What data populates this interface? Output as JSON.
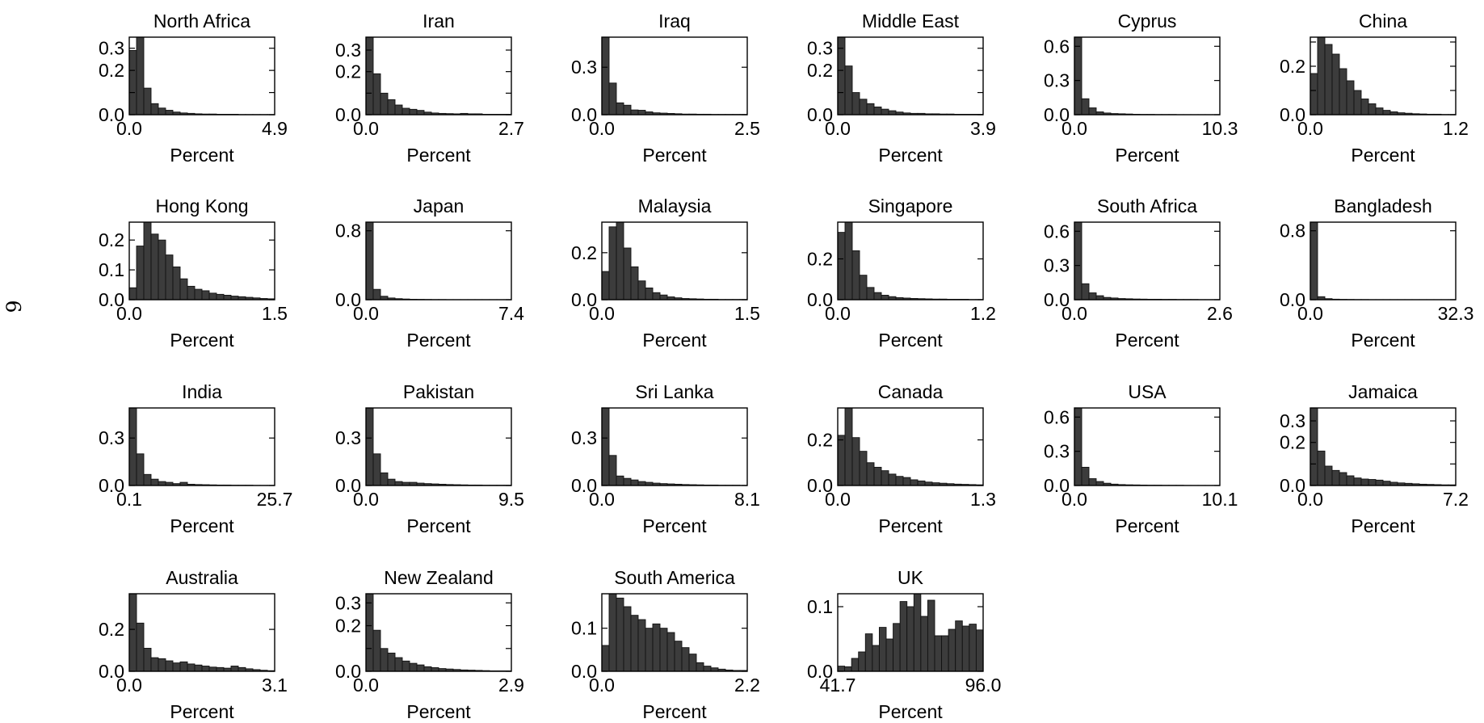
{
  "page": {
    "page_number": "6"
  },
  "chart_data": [
    {
      "type": "bar",
      "title": "North Africa",
      "xlabel": "Percent",
      "ylabel": "",
      "x_tick_labels": [
        "0.0",
        "4.9"
      ],
      "xlim": [
        0.0,
        4.9
      ],
      "y_ticks": [
        0.0,
        0.1,
        0.2,
        0.3
      ],
      "y_tick_labels": [
        "0.0",
        "0.2",
        "0.3"
      ],
      "ylim": [
        0,
        0.35
      ],
      "values": [
        0.29,
        0.35,
        0.12,
        0.05,
        0.03,
        0.02,
        0.012,
        0.008,
        0.006,
        0.004,
        0.003,
        0.003,
        0.002,
        0.002,
        0.002,
        0.001,
        0.001,
        0.001,
        0.001,
        0.001
      ]
    },
    {
      "type": "bar",
      "title": "Iran",
      "xlabel": "Percent",
      "ylabel": "",
      "x_tick_labels": [
        "0.0",
        "2.7"
      ],
      "xlim": [
        0.0,
        2.7
      ],
      "y_ticks": [
        0.0,
        0.1,
        0.2,
        0.3
      ],
      "y_tick_labels": [
        "0.0",
        "0.2",
        "0.3"
      ],
      "ylim": [
        0,
        0.36
      ],
      "values": [
        0.36,
        0.19,
        0.1,
        0.07,
        0.045,
        0.03,
        0.025,
        0.02,
        0.012,
        0.008,
        0.006,
        0.005,
        0.004,
        0.006,
        0.004,
        0.004,
        0.002,
        0.002,
        0.002,
        0.002
      ]
    },
    {
      "type": "bar",
      "title": "Iraq",
      "xlabel": "Percent",
      "ylabel": "",
      "x_tick_labels": [
        "0.0",
        "2.5"
      ],
      "xlim": [
        0.0,
        2.5
      ],
      "y_ticks": [
        0.0,
        0.3
      ],
      "y_tick_labels": [
        "0.0",
        "0.3"
      ],
      "ylim": [
        0,
        0.49
      ],
      "values": [
        0.49,
        0.2,
        0.075,
        0.06,
        0.03,
        0.028,
        0.018,
        0.012,
        0.01,
        0.008,
        0.006,
        0.004,
        0.004,
        0.003,
        0.003,
        0.002,
        0.002,
        0.002,
        0.002,
        0.002
      ]
    },
    {
      "type": "bar",
      "title": "Middle East",
      "xlabel": "Percent",
      "ylabel": "",
      "x_tick_labels": [
        "0.0",
        "3.9"
      ],
      "xlim": [
        0.0,
        3.9
      ],
      "y_ticks": [
        0.0,
        0.1,
        0.2,
        0.3
      ],
      "y_tick_labels": [
        "0.0",
        "0.2",
        "0.3"
      ],
      "ylim": [
        0,
        0.35
      ],
      "values": [
        0.35,
        0.22,
        0.1,
        0.07,
        0.05,
        0.035,
        0.025,
        0.018,
        0.012,
        0.008,
        0.006,
        0.006,
        0.004,
        0.004,
        0.003,
        0.003,
        0.002,
        0.002,
        0.002,
        0.002
      ]
    },
    {
      "type": "bar",
      "title": "Cyprus",
      "xlabel": "Percent",
      "ylabel": "",
      "x_tick_labels": [
        "0.0",
        "10.3"
      ],
      "xlim": [
        0.0,
        10.3
      ],
      "y_ticks": [
        0.0,
        0.3,
        0.6
      ],
      "y_tick_labels": [
        "0.0",
        "0.3",
        "0.6"
      ],
      "ylim": [
        0,
        0.68
      ],
      "values": [
        0.68,
        0.14,
        0.06,
        0.025,
        0.015,
        0.01,
        0.008,
        0.006,
        0.004,
        0.003,
        0.003,
        0.002,
        0.002,
        0.002,
        0.001,
        0.001,
        0.001,
        0.001,
        0.001,
        0.001
      ]
    },
    {
      "type": "bar",
      "title": "China",
      "xlabel": "Percent",
      "ylabel": "",
      "x_tick_labels": [
        "0.0",
        "1.2"
      ],
      "xlim": [
        0.0,
        1.2
      ],
      "y_ticks": [
        0.0,
        0.1,
        0.2,
        0.3
      ],
      "y_tick_labels": [
        "0.0",
        "0.2"
      ],
      "ylim": [
        0,
        0.32
      ],
      "values": [
        0.17,
        0.32,
        0.29,
        0.25,
        0.19,
        0.14,
        0.1,
        0.065,
        0.045,
        0.028,
        0.018,
        0.012,
        0.008,
        0.006,
        0.004,
        0.003,
        0.002,
        0.002,
        0.001,
        0.001
      ]
    },
    {
      "type": "bar",
      "title": "Hong Kong",
      "xlabel": "Percent",
      "ylabel": "",
      "x_tick_labels": [
        "0.0",
        "1.5"
      ],
      "xlim": [
        0.0,
        1.5
      ],
      "y_ticks": [
        0.0,
        0.1,
        0.2
      ],
      "y_tick_labels": [
        "0.0",
        "0.1",
        "0.2"
      ],
      "ylim": [
        0,
        0.26
      ],
      "values": [
        0.04,
        0.18,
        0.26,
        0.22,
        0.2,
        0.15,
        0.11,
        0.07,
        0.045,
        0.035,
        0.03,
        0.022,
        0.018,
        0.015,
        0.012,
        0.01,
        0.008,
        0.006,
        0.004,
        0.003
      ]
    },
    {
      "type": "bar",
      "title": "Japan",
      "xlabel": "Percent",
      "ylabel": "",
      "x_tick_labels": [
        "0.0",
        "7.4"
      ],
      "xlim": [
        0.0,
        7.4
      ],
      "y_ticks": [
        0.0,
        0.8
      ],
      "y_tick_labels": [
        "0.0",
        "0.8"
      ],
      "ylim": [
        0,
        0.9
      ],
      "values": [
        0.9,
        0.12,
        0.04,
        0.02,
        0.012,
        0.008,
        0.005,
        0.004,
        0.003,
        0.002,
        0.002,
        0.001,
        0.001,
        0.001,
        0.001,
        0.001,
        0.001,
        0.001,
        0.001,
        0.001
      ]
    },
    {
      "type": "bar",
      "title": "Malaysia",
      "xlabel": "Percent",
      "ylabel": "",
      "x_tick_labels": [
        "0.0",
        "1.5"
      ],
      "xlim": [
        0.0,
        1.5
      ],
      "y_ticks": [
        0.0,
        0.2
      ],
      "y_tick_labels": [
        "0.0",
        "0.2"
      ],
      "ylim": [
        0,
        0.33
      ],
      "values": [
        0.12,
        0.31,
        0.33,
        0.22,
        0.14,
        0.08,
        0.05,
        0.03,
        0.02,
        0.012,
        0.008,
        0.005,
        0.004,
        0.003,
        0.002,
        0.002,
        0.001,
        0.001,
        0.001,
        0.001
      ]
    },
    {
      "type": "bar",
      "title": "Singapore",
      "xlabel": "Percent",
      "ylabel": "",
      "x_tick_labels": [
        "0.0",
        "1.2"
      ],
      "xlim": [
        0.0,
        1.2
      ],
      "y_ticks": [
        0.0,
        0.2
      ],
      "y_tick_labels": [
        "0.0",
        "0.2"
      ],
      "ylim": [
        0,
        0.38
      ],
      "values": [
        0.33,
        0.38,
        0.24,
        0.12,
        0.06,
        0.035,
        0.022,
        0.015,
        0.01,
        0.008,
        0.006,
        0.005,
        0.004,
        0.003,
        0.003,
        0.002,
        0.002,
        0.002,
        0.001,
        0.001
      ]
    },
    {
      "type": "bar",
      "title": "South Africa",
      "xlabel": "Percent",
      "ylabel": "",
      "x_tick_labels": [
        "0.0",
        "2.6"
      ],
      "xlim": [
        0.0,
        2.6
      ],
      "y_ticks": [
        0.0,
        0.3,
        0.6
      ],
      "y_tick_labels": [
        "0.0",
        "0.3",
        "0.6"
      ],
      "ylim": [
        0,
        0.68
      ],
      "values": [
        0.68,
        0.14,
        0.06,
        0.035,
        0.02,
        0.015,
        0.01,
        0.008,
        0.006,
        0.005,
        0.004,
        0.004,
        0.003,
        0.003,
        0.002,
        0.002,
        0.002,
        0.001,
        0.001,
        0.001
      ]
    },
    {
      "type": "bar",
      "title": "Bangladesh",
      "xlabel": "Percent",
      "ylabel": "",
      "x_tick_labels": [
        "0.0",
        "32.3"
      ],
      "xlim": [
        0.0,
        32.3
      ],
      "y_ticks": [
        0.0,
        0.8
      ],
      "y_tick_labels": [
        "0.0",
        "0.8"
      ],
      "ylim": [
        0,
        0.9
      ],
      "values": [
        0.9,
        0.035,
        0.012,
        0.006,
        0.004,
        0.003,
        0.002,
        0.002,
        0.001,
        0.001,
        0.001,
        0.001,
        0.001,
        0.001,
        0.001,
        0.001,
        0.001,
        0.001,
        0.001,
        0.001
      ]
    },
    {
      "type": "bar",
      "title": "India",
      "xlabel": "Percent",
      "ylabel": "",
      "x_tick_labels": [
        "0.1",
        "25.7"
      ],
      "xlim": [
        0.1,
        25.7
      ],
      "y_ticks": [
        0.0,
        0.3
      ],
      "y_tick_labels": [
        "0.0",
        "0.3"
      ],
      "ylim": [
        0,
        0.49
      ],
      "values": [
        0.49,
        0.2,
        0.07,
        0.04,
        0.025,
        0.02,
        0.012,
        0.02,
        0.008,
        0.006,
        0.005,
        0.004,
        0.003,
        0.003,
        0.002,
        0.002,
        0.002,
        0.001,
        0.001,
        0.001
      ]
    },
    {
      "type": "bar",
      "title": "Pakistan",
      "xlabel": "Percent",
      "ylabel": "",
      "x_tick_labels": [
        "0.0",
        "9.5"
      ],
      "xlim": [
        0.0,
        9.5
      ],
      "y_ticks": [
        0.0,
        0.3
      ],
      "y_tick_labels": [
        "0.0",
        "0.3"
      ],
      "ylim": [
        0,
        0.49
      ],
      "values": [
        0.49,
        0.2,
        0.08,
        0.04,
        0.025,
        0.02,
        0.02,
        0.015,
        0.012,
        0.01,
        0.008,
        0.006,
        0.005,
        0.004,
        0.003,
        0.003,
        0.002,
        0.002,
        0.002,
        0.002
      ]
    },
    {
      "type": "bar",
      "title": "Sri Lanka",
      "xlabel": "Percent",
      "ylabel": "",
      "x_tick_labels": [
        "0.0",
        "8.1"
      ],
      "xlim": [
        0.0,
        8.1
      ],
      "y_ticks": [
        0.0,
        0.3
      ],
      "y_tick_labels": [
        "0.0",
        "0.3"
      ],
      "ylim": [
        0,
        0.49
      ],
      "values": [
        0.49,
        0.19,
        0.06,
        0.045,
        0.035,
        0.025,
        0.02,
        0.015,
        0.012,
        0.01,
        0.008,
        0.006,
        0.005,
        0.004,
        0.003,
        0.003,
        0.002,
        0.002,
        0.002,
        0.001
      ]
    },
    {
      "type": "bar",
      "title": "Canada",
      "xlabel": "Percent",
      "ylabel": "",
      "x_tick_labels": [
        "0.0",
        "1.3"
      ],
      "xlim": [
        0.0,
        1.3
      ],
      "y_ticks": [
        0.0,
        0.2
      ],
      "y_tick_labels": [
        "0.0",
        "0.2"
      ],
      "ylim": [
        0,
        0.34
      ],
      "values": [
        0.22,
        0.34,
        0.21,
        0.15,
        0.1,
        0.08,
        0.065,
        0.05,
        0.04,
        0.035,
        0.025,
        0.02,
        0.015,
        0.012,
        0.01,
        0.008,
        0.006,
        0.005,
        0.004,
        0.003
      ]
    },
    {
      "type": "bar",
      "title": "USA",
      "xlabel": "Percent",
      "ylabel": "",
      "x_tick_labels": [
        "0.0",
        "10.1"
      ],
      "xlim": [
        0.0,
        10.1
      ],
      "y_ticks": [
        0.0,
        0.3,
        0.6
      ],
      "y_tick_labels": [
        "0.0",
        "0.3",
        "0.6"
      ],
      "ylim": [
        0,
        0.68
      ],
      "values": [
        0.68,
        0.16,
        0.06,
        0.035,
        0.02,
        0.012,
        0.008,
        0.006,
        0.005,
        0.004,
        0.003,
        0.003,
        0.002,
        0.002,
        0.002,
        0.001,
        0.001,
        0.001,
        0.001,
        0.001
      ]
    },
    {
      "type": "bar",
      "title": "Jamaica",
      "xlabel": "Percent",
      "ylabel": "",
      "x_tick_labels": [
        "0.0",
        "7.2"
      ],
      "xlim": [
        0.0,
        7.2
      ],
      "y_ticks": [
        0.0,
        0.1,
        0.2,
        0.3
      ],
      "y_tick_labels": [
        "0.0",
        "0.2",
        "0.3"
      ],
      "ylim": [
        0,
        0.36
      ],
      "values": [
        0.36,
        0.16,
        0.09,
        0.07,
        0.06,
        0.045,
        0.035,
        0.03,
        0.028,
        0.025,
        0.02,
        0.015,
        0.012,
        0.01,
        0.008,
        0.006,
        0.005,
        0.004,
        0.003,
        0.003
      ]
    },
    {
      "type": "bar",
      "title": "Australia",
      "xlabel": "Percent",
      "ylabel": "",
      "x_tick_labels": [
        "0.0",
        "3.1"
      ],
      "xlim": [
        0.0,
        3.1
      ],
      "y_ticks": [
        0.0,
        0.2
      ],
      "y_tick_labels": [
        "0.0",
        "0.2"
      ],
      "ylim": [
        0,
        0.37
      ],
      "values": [
        0.37,
        0.23,
        0.11,
        0.065,
        0.06,
        0.05,
        0.04,
        0.045,
        0.035,
        0.03,
        0.025,
        0.02,
        0.018,
        0.015,
        0.025,
        0.018,
        0.012,
        0.008,
        0.005,
        0.003
      ]
    },
    {
      "type": "bar",
      "title": "New Zealand",
      "xlabel": "Percent",
      "ylabel": "",
      "x_tick_labels": [
        "0.0",
        "2.9"
      ],
      "xlim": [
        0.0,
        2.9
      ],
      "y_ticks": [
        0.0,
        0.1,
        0.2,
        0.3
      ],
      "y_tick_labels": [
        "0.0",
        "0.2",
        "0.3"
      ],
      "ylim": [
        0,
        0.34
      ],
      "values": [
        0.34,
        0.18,
        0.1,
        0.08,
        0.06,
        0.045,
        0.035,
        0.028,
        0.02,
        0.016,
        0.012,
        0.01,
        0.008,
        0.006,
        0.005,
        0.004,
        0.003,
        0.002,
        0.002,
        0.002
      ]
    },
    {
      "type": "bar",
      "title": "South America",
      "xlabel": "Percent",
      "ylabel": "",
      "x_tick_labels": [
        "0.0",
        "2.2"
      ],
      "xlim": [
        0.0,
        2.2
      ],
      "y_ticks": [
        0.0,
        0.1
      ],
      "y_tick_labels": [
        "0.0",
        "0.1"
      ],
      "ylim": [
        0,
        0.18
      ],
      "values": [
        0.06,
        0.18,
        0.17,
        0.15,
        0.13,
        0.12,
        0.1,
        0.11,
        0.1,
        0.09,
        0.07,
        0.055,
        0.04,
        0.02,
        0.012,
        0.008,
        0.005,
        0.003,
        0.002,
        0.002
      ]
    },
    {
      "type": "bar",
      "title": "UK",
      "xlabel": "Percent",
      "ylabel": "",
      "x_tick_labels": [
        "41.7",
        "96.0"
      ],
      "xlim": [
        41.7,
        96.0
      ],
      "y_ticks": [
        0.0,
        0.1
      ],
      "y_tick_labels": [
        "0.0",
        "0.1"
      ],
      "ylim": [
        0,
        0.12
      ],
      "values": [
        0.008,
        0.007,
        0.02,
        0.03,
        0.058,
        0.04,
        0.068,
        0.05,
        0.074,
        0.108,
        0.1,
        0.12,
        0.085,
        0.11,
        0.055,
        0.055,
        0.065,
        0.078,
        0.07,
        0.073,
        0.064
      ]
    }
  ]
}
